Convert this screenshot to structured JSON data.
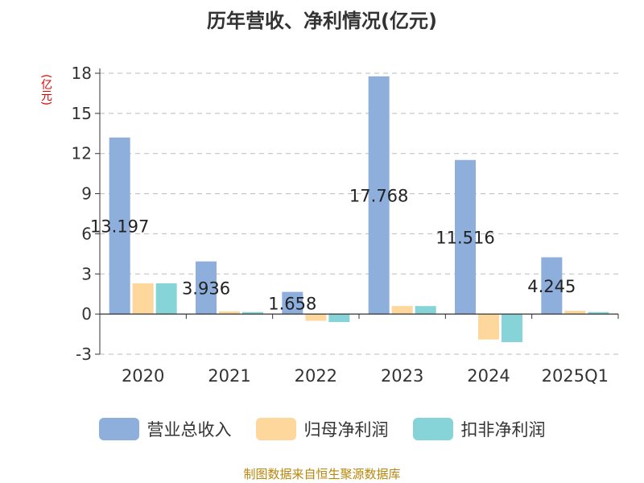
{
  "chart_data": {
    "type": "bar",
    "title": "历年营收、净利情况(亿元)",
    "ylabel": "(亿元)",
    "source": "制图数据来自恒生聚源数据库",
    "categories": [
      "2020",
      "2021",
      "2022",
      "2023",
      "2024",
      "2025Q1"
    ],
    "yticks": [
      "18",
      "15",
      "12",
      "9",
      "6",
      "3",
      "0",
      "-3"
    ],
    "ylim": [
      -3,
      18
    ],
    "grid": true,
    "legend_position": "bottom",
    "series": [
      {
        "name": "营业总收入",
        "color": "#8eaedb",
        "values": [
          13.197,
          3.936,
          1.658,
          17.768,
          11.516,
          4.245
        ],
        "labels": [
          "13.197",
          "3.936",
          "1.658",
          "17.768",
          "11.516",
          "4.245"
        ]
      },
      {
        "name": "归母净利润",
        "color": "#fdd79b",
        "values": [
          2.3,
          0.2,
          -0.5,
          0.6,
          -1.9,
          0.25
        ]
      },
      {
        "name": "扣非净利润",
        "color": "#86d4d7",
        "values": [
          2.3,
          0.15,
          -0.6,
          0.6,
          -2.1,
          0.15
        ]
      }
    ]
  }
}
